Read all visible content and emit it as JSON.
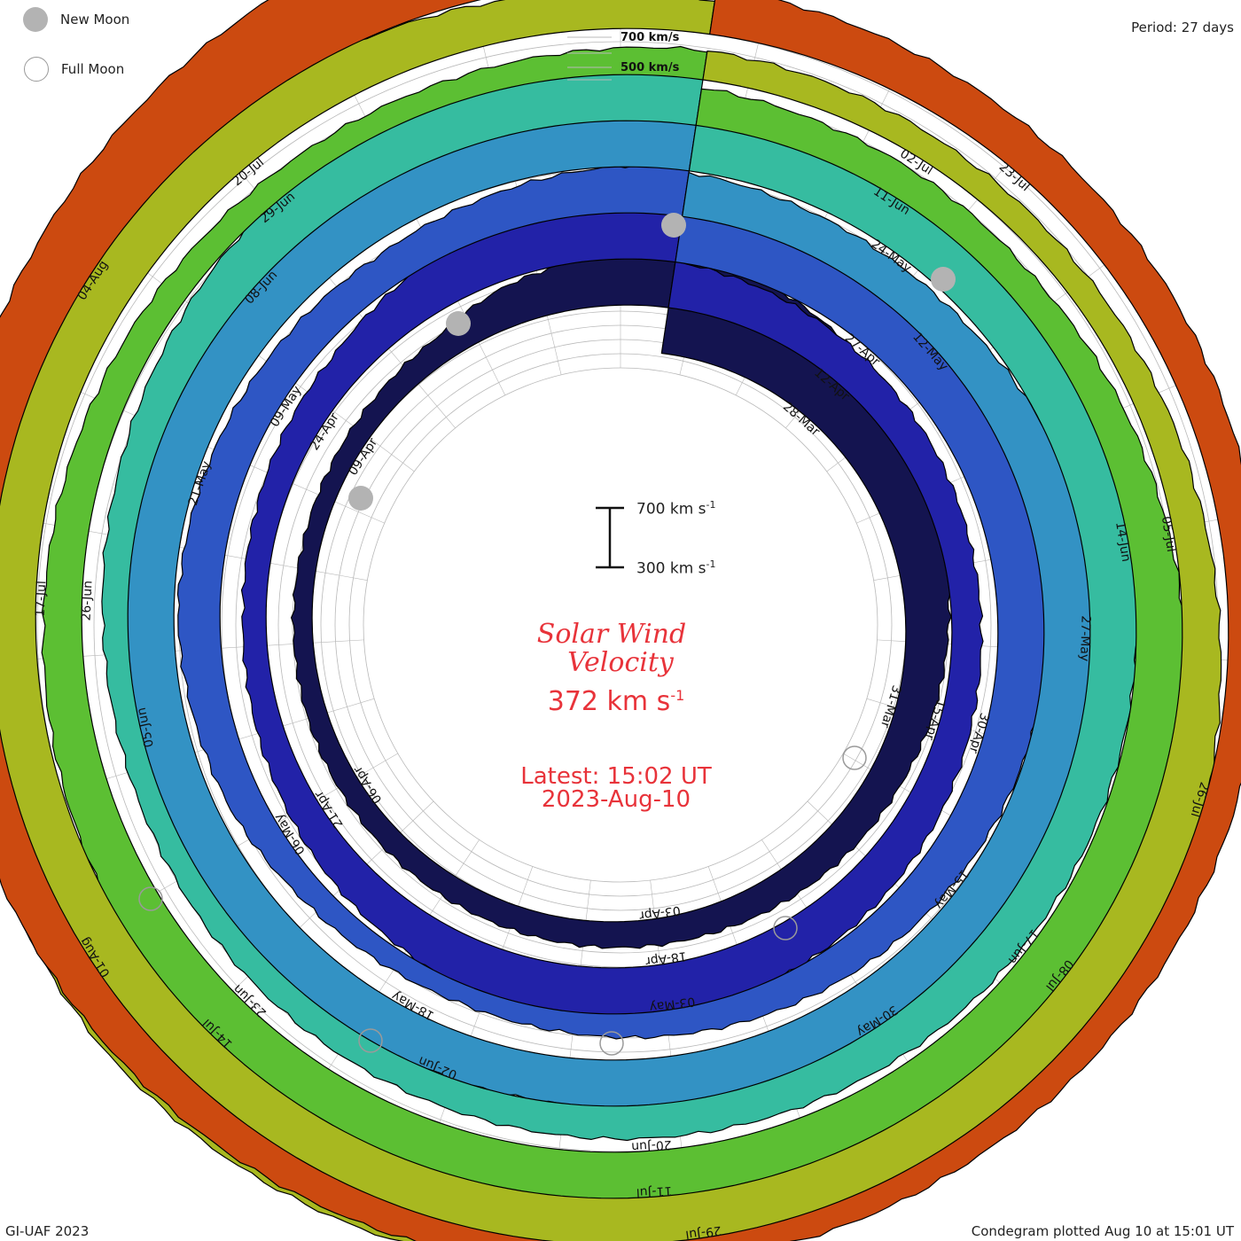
{
  "header": {
    "legend_new_moon": "New Moon",
    "legend_full_moon": "Full Moon",
    "period": "Period: 27 days",
    "speed_700": "700 km/s",
    "speed_500": "500 km/s"
  },
  "center": {
    "title_line1": "Solar Wind",
    "title_line2": "Velocity",
    "current_value": "372",
    "current_unit": "km s",
    "unit_exponent": "-1",
    "latest_line": "Latest: 15:02 UT",
    "latest_date": "2023-Aug-10",
    "scale_high": "700 km s",
    "scale_low": "300 km s",
    "scale_exp": "-1"
  },
  "footer": {
    "credit": "GI-UAF 2023",
    "plotted": "Condegram plotted Aug 10 at 15:01 UT"
  },
  "colors": {
    "title": "#e8333a",
    "grid": "#b8b8b8",
    "new_moon": "#b3b3b3",
    "full_moon_outline": "#9a9a9a"
  },
  "chart_data": {
    "type": "condegram",
    "period_days": 27,
    "unit": "km/s",
    "scale_range": [
      300,
      700
    ],
    "latest_value": 372,
    "rotations": [
      {
        "color": "#141450",
        "labels": [
          "28-Mar",
          "31-Mar",
          "03-Apr",
          "06-Apr",
          "09-Apr"
        ],
        "velocity": [
          700,
          690,
          640,
          560,
          500,
          470,
          440,
          420,
          400,
          390,
          380,
          370,
          365,
          360,
          355,
          350,
          345,
          340,
          335,
          330,
          325,
          330,
          340,
          360,
          430,
          470,
          510
        ]
      },
      {
        "color": "#2222a8",
        "labels": [
          "12-Apr",
          "15-Apr",
          "18-Apr",
          "21-Apr",
          "24-Apr"
        ],
        "velocity": [
          460,
          440,
          420,
          400,
          390,
          380,
          380,
          390,
          410,
          430,
          450,
          470,
          510,
          520,
          480,
          440,
          410,
          380,
          360,
          350,
          360,
          380,
          400,
          450,
          500,
          520,
          560
        ]
      },
      {
        "color": "#2e56c4",
        "labels": [
          "27-Apr",
          "30-Apr",
          "03-May",
          "06-May",
          "09-May"
        ],
        "velocity": [
          620,
          600,
          570,
          540,
          520,
          500,
          480,
          460,
          440,
          420,
          400,
          380,
          360,
          340,
          330,
          340,
          360,
          400,
          420,
          440,
          430,
          420,
          410,
          400,
          420,
          450,
          480
        ]
      },
      {
        "color": "#3392c4",
        "labels": [
          "12-May",
          "15-May",
          "18-May",
          "21-May"
        ],
        "velocity": [
          450,
          430,
          420,
          430,
          460,
          500,
          540,
          560,
          560,
          540,
          520,
          500,
          480,
          460,
          460,
          470,
          480,
          500,
          520,
          540,
          560,
          580,
          600,
          620,
          600,
          580,
          560
        ]
      },
      {
        "color": "#36bca0",
        "labels": [
          "24-May",
          "27-May",
          "30-May",
          "02-Jun",
          "05-Jun",
          "08-Jun"
        ],
        "velocity": [
          560,
          560,
          540,
          520,
          500,
          480,
          460,
          450,
          440,
          430,
          420,
          410,
          400,
          390,
          380,
          370,
          360,
          350,
          350,
          360,
          380,
          410,
          450,
          480,
          500,
          520,
          540
        ]
      },
      {
        "color": "#5cbf33",
        "labels": [
          "11-Jun",
          "14-Jun",
          "17-Jun",
          "20-Jun",
          "23-Jun",
          "26-Jun",
          "29-Jun"
        ],
        "velocity": [
          420,
          400,
          390,
          380,
          400,
          430,
          470,
          520,
          560,
          600,
          620,
          610,
          590,
          560,
          530,
          500,
          480,
          460,
          440,
          420,
          400,
          380,
          360,
          350,
          350,
          360,
          380
        ]
      },
      {
        "color": "#a8b820",
        "labels": [
          "02-Jul",
          "05-Jul",
          "08-Jul",
          "11-Jul",
          "14-Jul",
          "17-Jul",
          "20-Jul"
        ],
        "velocity": [
          380,
          370,
          360,
          360,
          370,
          390,
          420,
          460,
          500,
          520,
          540,
          560,
          580,
          600,
          620,
          640,
          660,
          650,
          630,
          600,
          570,
          540,
          510,
          480,
          450,
          420,
          400
        ]
      },
      {
        "color": "#cc4a10",
        "labels": [
          "23-Jul",
          "26-Jul",
          "29-Jul",
          "01-Aug",
          "04-Aug"
        ],
        "velocity": [
          460,
          450,
          440,
          430,
          420,
          410,
          400,
          390,
          380,
          370,
          360,
          355,
          350,
          360,
          380,
          400,
          420,
          440,
          460,
          480,
          500,
          520,
          560,
          600,
          640,
          680,
          700
        ]
      }
    ],
    "new_moon_labels": [
      "New Moon"
    ],
    "full_moon_labels": [
      "Full Moon"
    ]
  }
}
